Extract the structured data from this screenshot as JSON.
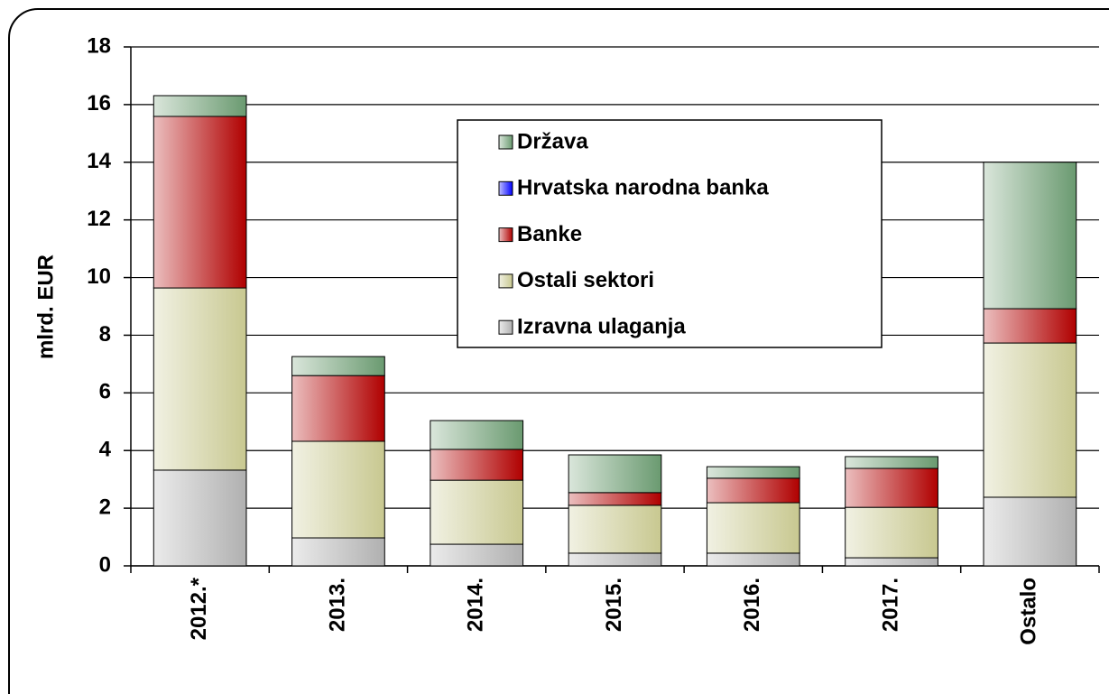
{
  "chart_data": {
    "type": "stacked_bar",
    "y_label": "mlrd.  EUR",
    "categories": [
      "2012.*",
      "2013.",
      "2014.",
      "2015.",
      "2016.",
      "2017.",
      "Ostalo"
    ],
    "series": [
      {
        "name": "Izravna ulaganja",
        "color": "#b0b0b0",
        "values": [
          3.32,
          0.97,
          0.75,
          0.44,
          0.44,
          0.28,
          2.38
        ]
      },
      {
        "name": "Ostali sektori",
        "color": "#c8c890",
        "values": [
          6.32,
          3.35,
          2.22,
          1.66,
          1.75,
          1.75,
          5.35
        ]
      },
      {
        "name": "Banke",
        "color": "#b00000",
        "values": [
          5.95,
          2.28,
          1.07,
          0.44,
          0.85,
          1.35,
          1.19
        ]
      },
      {
        "name": "Hrvatska narodna banka",
        "color": "#0000ff",
        "values": [
          0,
          0,
          0,
          0,
          0,
          0,
          0
        ]
      },
      {
        "name": "Država",
        "color": "#6a9a70",
        "values": [
          0.72,
          0.66,
          1.0,
          1.31,
          0.4,
          0.41,
          5.08
        ]
      }
    ],
    "ylim": [
      0,
      18
    ],
    "yticks": [
      0,
      2,
      4,
      6,
      8,
      10,
      12,
      14,
      16,
      18
    ],
    "grid": true
  }
}
